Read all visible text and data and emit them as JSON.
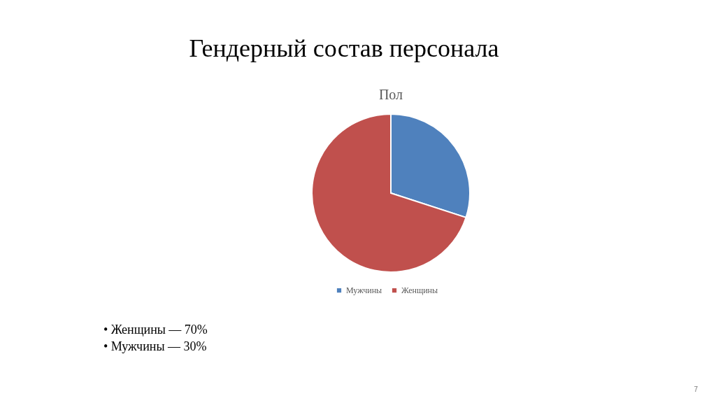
{
  "chart_data": {
    "type": "pie",
    "title": "Гендерный состав персонала",
    "subtitle": "Пол",
    "categories": [
      "Мужчины",
      "Женщины"
    ],
    "values": [
      30,
      70
    ],
    "colors": [
      "#4f81bd",
      "#c0504d"
    ],
    "legend": "bottom",
    "annotations": [
      "• Женщины — 70%",
      "• Мужчины — 30%",
      "7"
    ]
  }
}
